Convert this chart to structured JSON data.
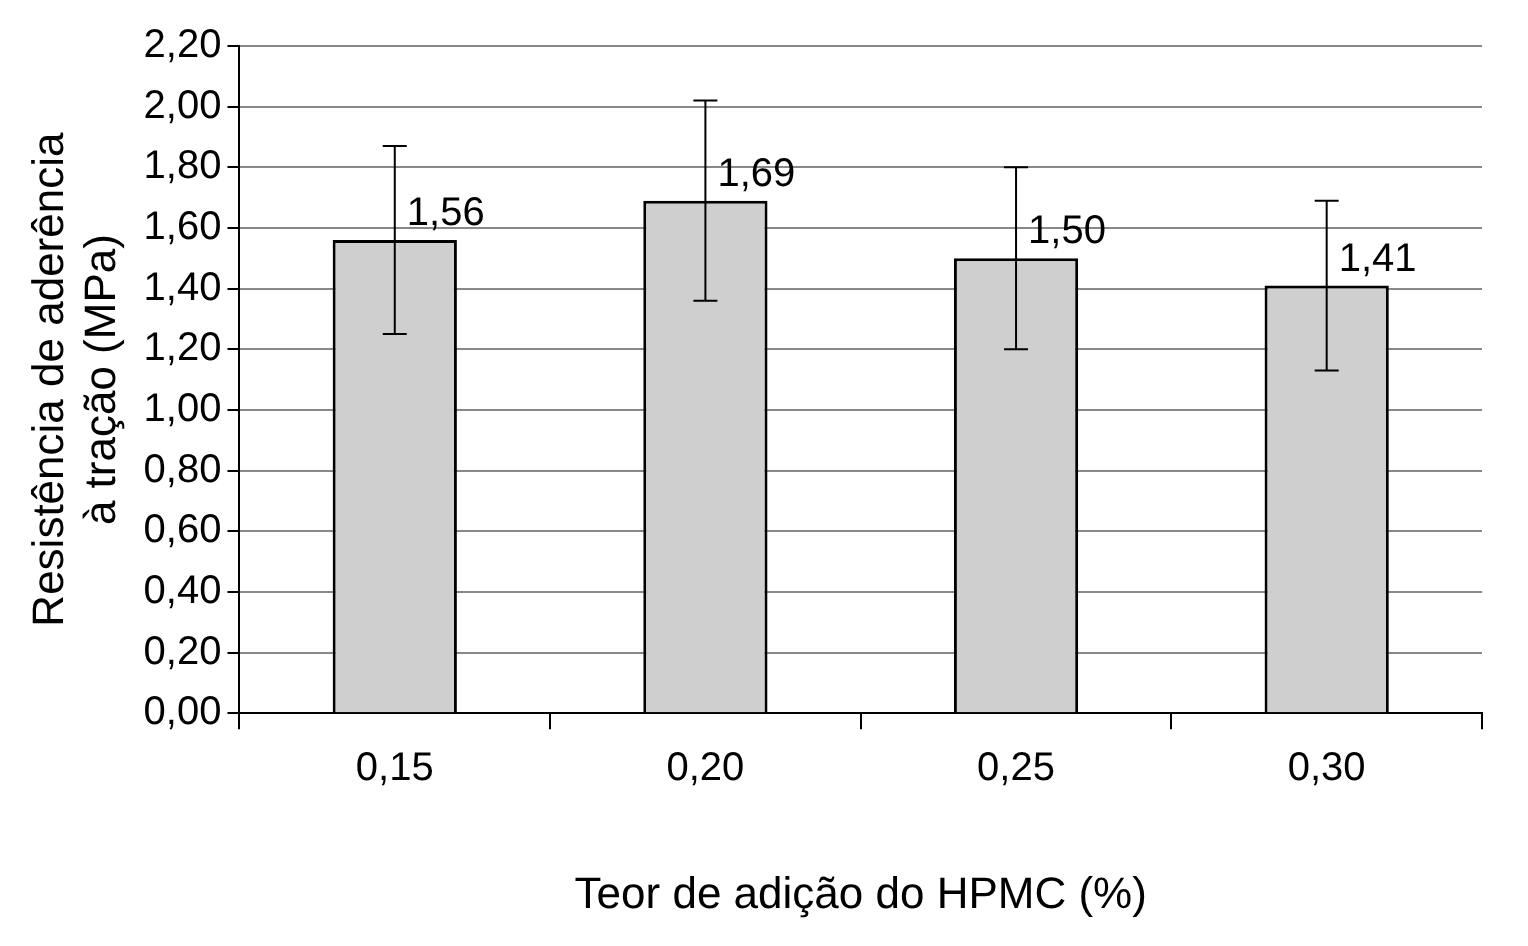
{
  "chart_data": {
    "type": "bar",
    "xlabel": "Teor de adição do HPMC (%)",
    "ylabel": "Resistência de aderência à tração (MPa)",
    "categories": [
      "0,15",
      "0,20",
      "0,25",
      "0,30"
    ],
    "values": [
      1.56,
      1.69,
      1.5,
      1.41
    ],
    "errors": [
      0.31,
      0.33,
      0.3,
      0.28
    ],
    "value_labels": [
      "1,56",
      "1,69",
      "1,50",
      "1,41"
    ],
    "color": "#cfcfcf",
    "ylim": [
      0,
      2.2
    ],
    "yticks": [
      {
        "value": 0,
        "label": "0,00"
      },
      {
        "value": 0.2,
        "label": "0,20"
      },
      {
        "value": 0.4,
        "label": "0,40"
      },
      {
        "value": 0.6,
        "label": "0,60"
      },
      {
        "value": 0.8,
        "label": "0,80"
      },
      {
        "value": 1,
        "label": "1,00"
      },
      {
        "value": 1.2,
        "label": "1,20"
      },
      {
        "value": 1.4,
        "label": "1,40"
      },
      {
        "value": 1.6,
        "label": "1,60"
      },
      {
        "value": 1.8,
        "label": "1,80"
      },
      {
        "value": 2,
        "label": "2,00"
      },
      {
        "value": 2.2,
        "label": "2,20"
      }
    ],
    "grid": "y",
    "legend": false
  }
}
